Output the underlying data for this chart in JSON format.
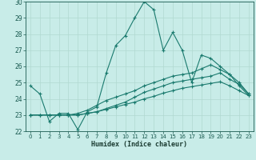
{
  "xlabel": "Humidex (Indice chaleur)",
  "bg_color": "#c8ece8",
  "line_color": "#1a7a6e",
  "grid_color": "#b0d8d0",
  "xlim": [
    -0.5,
    23.5
  ],
  "ylim": [
    22,
    30
  ],
  "xticks": [
    0,
    1,
    2,
    3,
    4,
    5,
    6,
    7,
    8,
    9,
    10,
    11,
    12,
    13,
    14,
    15,
    16,
    17,
    18,
    19,
    20,
    21,
    22,
    23
  ],
  "yticks": [
    22,
    23,
    24,
    25,
    26,
    27,
    28,
    29,
    30
  ],
  "series": [
    [
      24.8,
      24.3,
      22.6,
      23.1,
      23.1,
      22.1,
      23.2,
      23.5,
      25.6,
      27.3,
      27.9,
      29.0,
      30.0,
      29.5,
      27.0,
      28.1,
      27.0,
      25.0,
      26.7,
      26.5,
      26.0,
      25.5,
      24.8,
      24.2
    ],
    [
      23.0,
      23.0,
      23.0,
      23.0,
      23.0,
      23.0,
      23.1,
      23.2,
      23.35,
      23.5,
      23.65,
      23.8,
      24.0,
      24.15,
      24.35,
      24.5,
      24.65,
      24.75,
      24.85,
      24.95,
      25.05,
      24.8,
      24.5,
      24.2
    ],
    [
      23.0,
      23.0,
      23.0,
      23.0,
      23.0,
      23.0,
      23.1,
      23.2,
      23.4,
      23.6,
      23.8,
      24.1,
      24.4,
      24.6,
      24.8,
      25.0,
      25.1,
      25.2,
      25.3,
      25.4,
      25.6,
      25.2,
      24.9,
      24.3
    ],
    [
      23.0,
      23.0,
      23.0,
      23.0,
      23.0,
      23.1,
      23.3,
      23.6,
      23.9,
      24.1,
      24.3,
      24.5,
      24.8,
      25.0,
      25.2,
      25.4,
      25.5,
      25.6,
      25.85,
      26.1,
      25.8,
      25.5,
      25.0,
      24.3
    ]
  ]
}
